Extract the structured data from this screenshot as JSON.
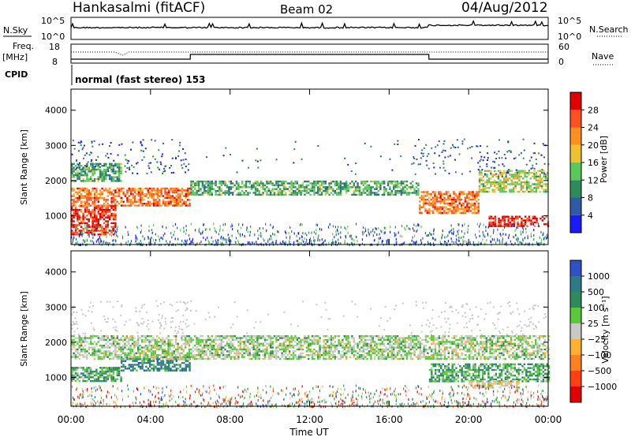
{
  "header": {
    "station": "Hankasalmi (fitACF)",
    "beam": "Beam 02",
    "date": "04/Aug/2012"
  },
  "top_panels": {
    "nsky_label": "N.Sky",
    "nsky_top_tick": "10^5",
    "nsky_bottom_tick": "10^0",
    "nsearch_label": "N.Search",
    "freq_label": "Freq.",
    "freq_unit": "[MHz]",
    "freq_top_tick": "18",
    "freq_bottom_tick": "8",
    "nave_label": "Nave",
    "nave_top_tick": "60",
    "nave_bottom_tick": "0",
    "cpid_label": "CPID",
    "cpid_text": "normal (fast stereo) 153"
  },
  "x_axis": {
    "label": "Time UT",
    "ticks": [
      "00:00",
      "04:00",
      "08:00",
      "12:00",
      "16:00",
      "20:00",
      "00:00"
    ],
    "range_hours": [
      0,
      24
    ]
  },
  "panels": {
    "power": {
      "ylabel": "Slant Range [km]",
      "yticks": [
        "1000",
        "2000",
        "3000",
        "4000"
      ],
      "colorbar_label": "Power [dB]",
      "colorbar_ticks": [
        "4",
        "8",
        "12",
        "16",
        "20",
        "24",
        "28"
      ],
      "colors": [
        "#1a1aff",
        "#2e5aa8",
        "#2e8a5a",
        "#5ac85a",
        "#f0c030",
        "#ff9020",
        "#ff5020",
        "#e00000"
      ]
    },
    "velocity": {
      "ylabel": "Slant Range [km]",
      "yticks": [
        "1000",
        "2000",
        "3000",
        "4000"
      ],
      "colorbar_label": "Velocity [m s⁻¹]",
      "colorbar_ticks": [
        "1000",
        "500",
        "100",
        "25",
        "−25",
        "−100",
        "−500",
        "−1000"
      ],
      "colors": [
        "#3050c8",
        "#2e7a8a",
        "#2e8a5a",
        "#5ac83a",
        "#c8c8c8",
        "#ffb030",
        "#ff8020",
        "#ff4010",
        "#e00000"
      ]
    }
  },
  "chart_data": [
    {
      "type": "heatmap",
      "title": "Power",
      "xlabel": "Time UT",
      "ylabel": "Slant Range [km]",
      "xlim": [
        0,
        24
      ],
      "ylim": [
        180,
        4600
      ],
      "colorbar": "Power [dB]",
      "colorbar_range": [
        0,
        30
      ],
      "bands": [
        {
          "t0": 0.0,
          "t1": 2.2,
          "r0": 450,
          "r1": 1300,
          "level": 7
        },
        {
          "t0": 0.0,
          "t1": 2.5,
          "r0": 1300,
          "r1": 1800,
          "level": 6
        },
        {
          "t0": 0.0,
          "t1": 2.5,
          "r0": 2000,
          "r1": 2500,
          "level": 3
        },
        {
          "t0": 2.5,
          "t1": 6.0,
          "r0": 1300,
          "r1": 1800,
          "level": 6
        },
        {
          "t0": 6.0,
          "t1": 17.5,
          "r0": 1600,
          "r1": 2000,
          "level": 3
        },
        {
          "t0": 17.5,
          "t1": 20.5,
          "r0": 1100,
          "r1": 1700,
          "level": 6
        },
        {
          "t0": 20.5,
          "t1": 24.0,
          "r0": 1700,
          "r1": 2300,
          "level": 4
        },
        {
          "t0": 21.0,
          "t1": 24.0,
          "r0": 700,
          "r1": 1000,
          "level": 7
        }
      ]
    },
    {
      "type": "heatmap",
      "title": "Velocity",
      "xlabel": "Time UT",
      "ylabel": "Slant Range [km]",
      "xlim": [
        0,
        24
      ],
      "ylim": [
        180,
        4600
      ],
      "colorbar": "Velocity [m s⁻¹]",
      "colorbar_range": [
        -1000,
        1000
      ],
      "bands": [
        {
          "t0": 0.0,
          "t1": 2.5,
          "r0": 900,
          "r1": 1300,
          "level": 3
        },
        {
          "t0": 2.5,
          "t1": 6.0,
          "r0": 1200,
          "r1": 1600,
          "level": 2
        },
        {
          "t0": 0.0,
          "t1": 24.0,
          "r0": 1500,
          "r1": 2200,
          "level": 4
        },
        {
          "t0": 18.0,
          "t1": 24.0,
          "r0": 900,
          "r1": 1400,
          "level": 3
        },
        {
          "t0": 20.0,
          "t1": 22.5,
          "r0": 700,
          "r1": 900,
          "level": 5
        }
      ]
    }
  ]
}
